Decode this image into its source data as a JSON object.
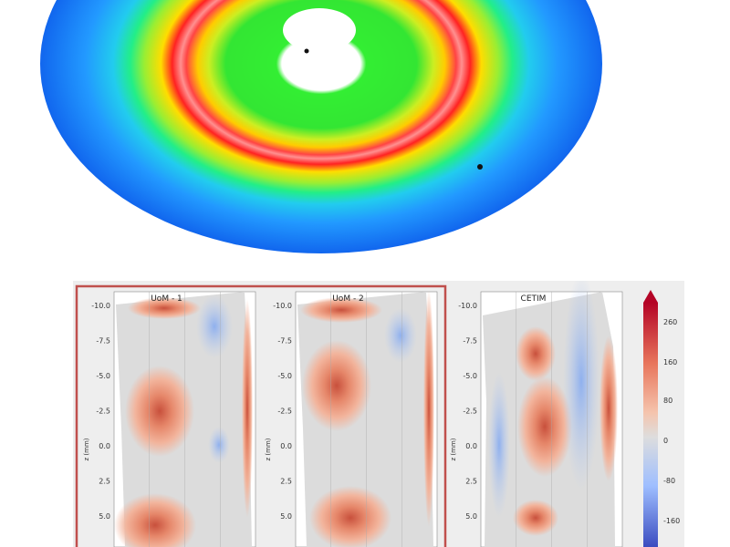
{
  "chart_data": [
    {
      "type": "heatmap",
      "description_kind": "3d-surface-disc",
      "colormap": "jet",
      "title": "",
      "rings": [
        {
          "r": 0.0,
          "value": "white"
        },
        {
          "r": 0.14,
          "value": 0.45
        },
        {
          "r": 0.34,
          "value": 0.62
        },
        {
          "r": 0.44,
          "value": 0.85
        },
        {
          "r": 0.5,
          "value": 1.0
        },
        {
          "r": 0.56,
          "value": 0.78
        },
        {
          "r": 0.64,
          "value": 0.55
        },
        {
          "r": 0.74,
          "value": 0.33
        },
        {
          "r": 1.0,
          "value": 0.1
        }
      ]
    },
    {
      "type": "heatmap",
      "colormap": "coolwarm",
      "panels": [
        {
          "title": "UoM - 1"
        },
        {
          "title": "UoM - 2"
        },
        {
          "title": "CETIM"
        }
      ],
      "ylabel": "z (mm)",
      "yticks": [
        "-10.0",
        "-7.5",
        "-5.0",
        "-2.5",
        "0.0",
        "2.5",
        "5.0"
      ],
      "colorbar_ticks": [
        "260",
        "160",
        "80",
        "0",
        "-80",
        "-160"
      ],
      "colorbar_range": [
        -200,
        300
      ],
      "selected_panels": [
        "UoM - 1",
        "UoM - 2"
      ],
      "colors": {
        "selection_box": "#c0504d",
        "panel_bg": "#dcdcdc"
      }
    }
  ]
}
